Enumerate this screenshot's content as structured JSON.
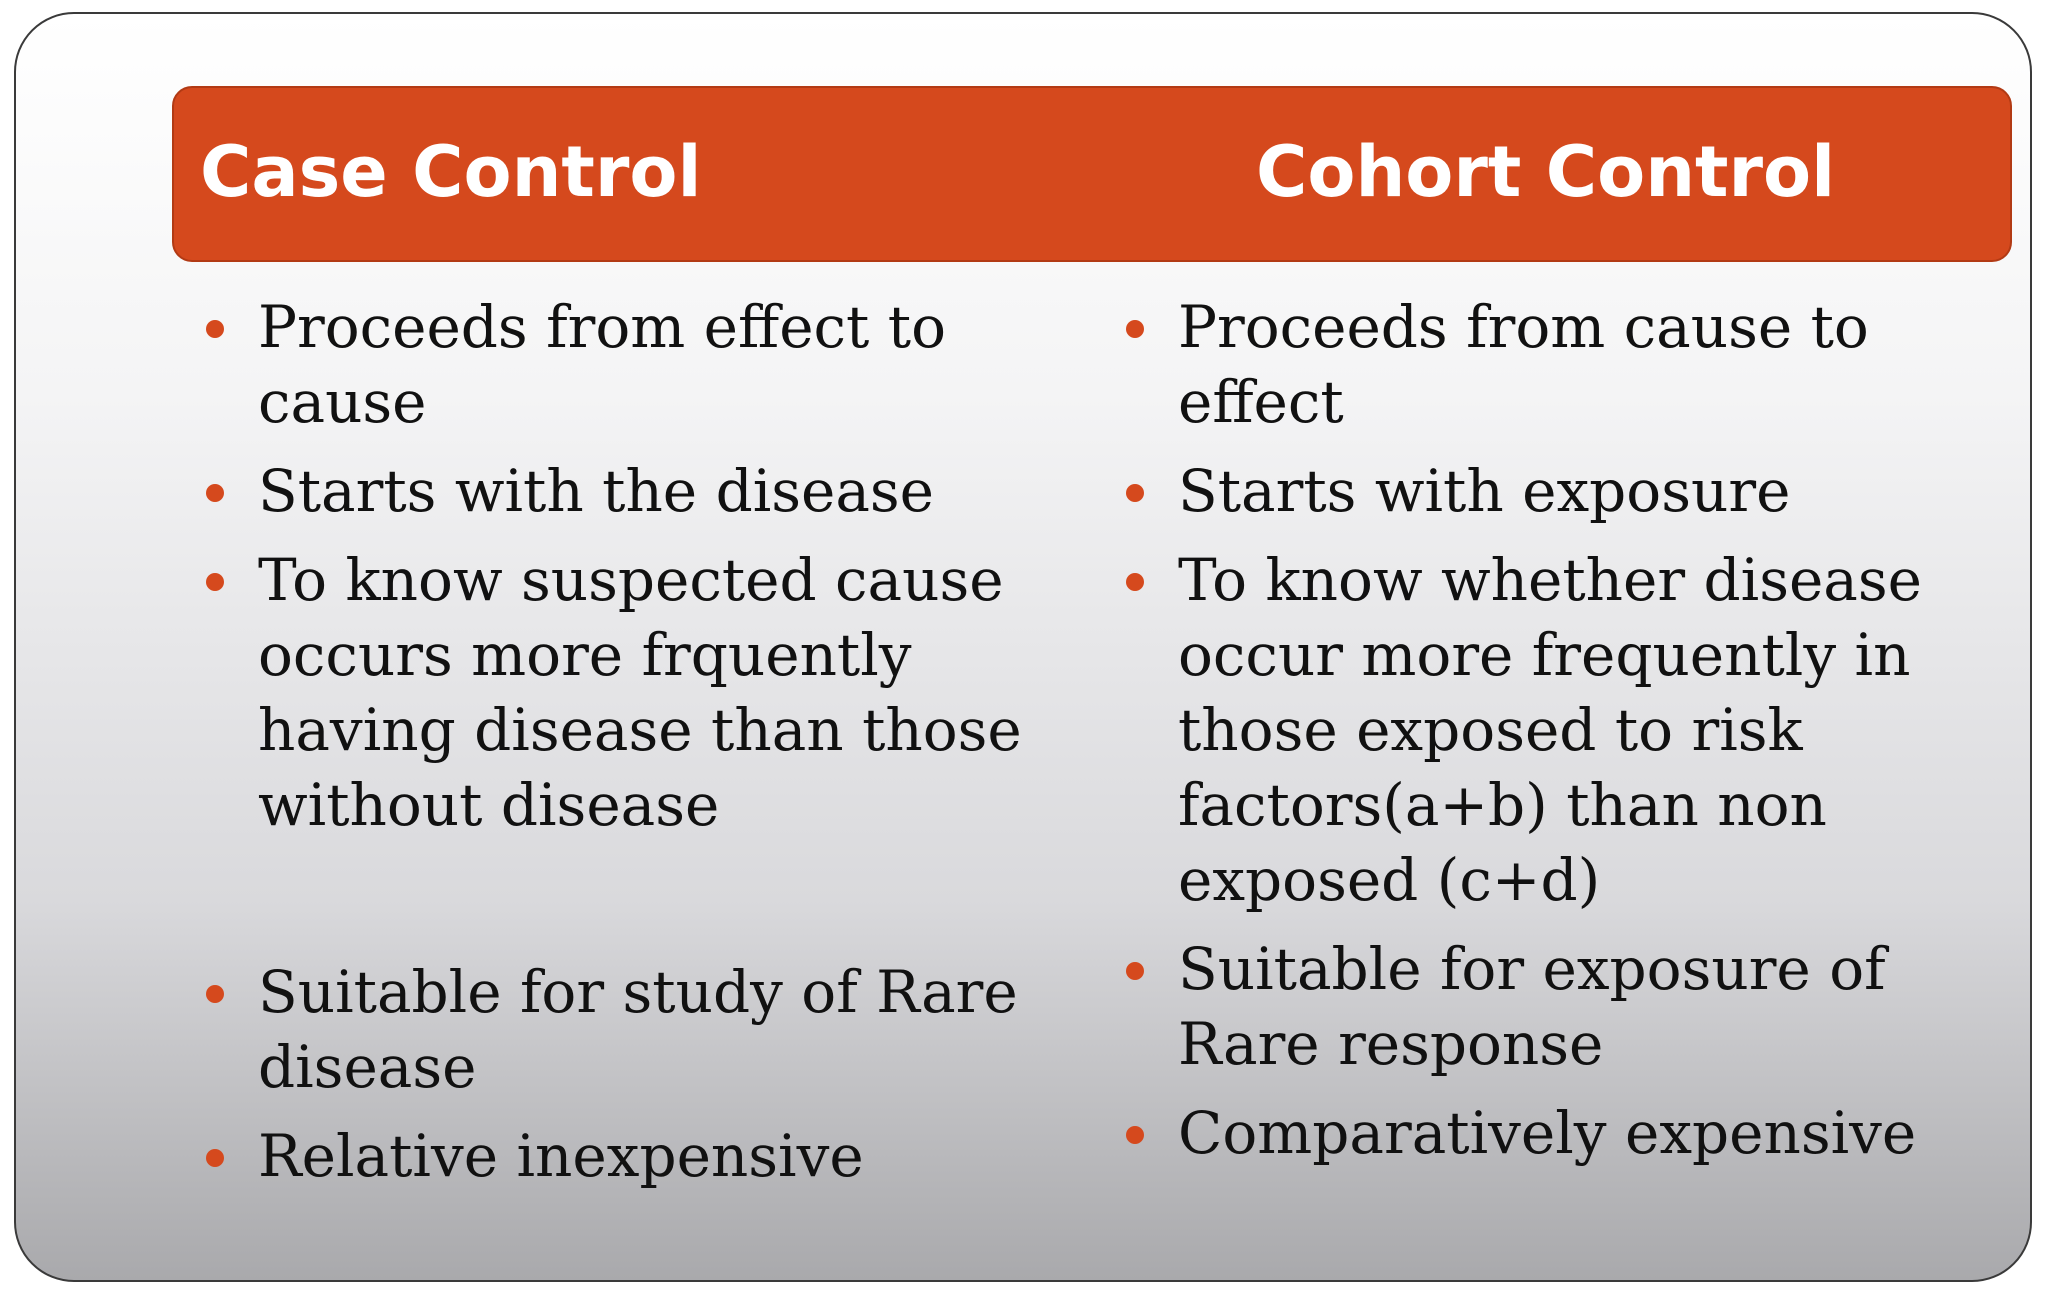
{
  "header": {
    "left_title": "Case Control",
    "right_title": "Cohort Control"
  },
  "left_column": {
    "items": [
      "Proceeds from effect to cause",
      "Starts with the disease",
      "To know suspected cause occurs more frquently having disease than those without disease",
      "Suitable for study of Rare disease",
      "Relative inexpensive"
    ]
  },
  "right_column": {
    "items": [
      "Proceeds from cause to effect",
      "Starts with exposure",
      "To know whether disease occur more frequently in those exposed to risk factors(a+b) than non exposed (c+d)",
      "Suitable for exposure of Rare response",
      "Comparatively expensive"
    ]
  },
  "colors": {
    "accent": "#d5491d",
    "text": "#111111",
    "header_text": "#ffffff"
  }
}
